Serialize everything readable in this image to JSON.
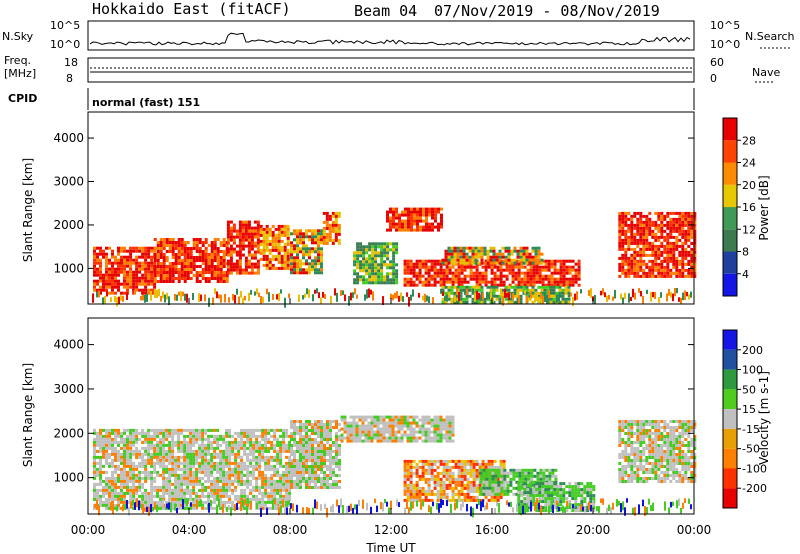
{
  "header": {
    "title": "Hokkaido East (fitACF)",
    "beam": "Beam 04",
    "date_range": "07/Nov/2019 - 08/Nov/2019"
  },
  "noise_panel": {
    "left_label": "N.Sky",
    "right_label": "N.Search",
    "left_ticks": [
      "10^5",
      "10^0"
    ],
    "right_ticks": [
      "10^5",
      "10^0"
    ]
  },
  "freq_panel": {
    "left_label_1": "Freq.",
    "left_label_2": "[MHz]",
    "left_ticks": [
      "18",
      "8"
    ],
    "right_label": "Nave",
    "right_ticks": [
      "60",
      "0"
    ]
  },
  "cpid_panel": {
    "label": "CPID",
    "value": "normal (fast) 151"
  },
  "colors": {
    "red": "#e60000",
    "orange": "#ff8000",
    "yellow": "#e8c000",
    "green": "#2e8b57",
    "lightgreen": "#44cc22",
    "gray": "#c0c0c0",
    "blue": "#1010e0",
    "navy": "#203080"
  },
  "chart_data": [
    {
      "type": "heatmap",
      "name": "power",
      "ylabel": "Slant Range [km]",
      "xlabel": "",
      "x_ticks": [
        "00:00",
        "04:00",
        "08:00",
        "12:00",
        "16:00",
        "20:00",
        "00:00"
      ],
      "xlim_hours": [
        0,
        24
      ],
      "ylim": [
        180,
        4600
      ],
      "y_ticks": [
        "1000",
        "2000",
        "3000",
        "4000"
      ],
      "colorbar": {
        "label": "Power [dB]",
        "ticks": [
          "4",
          "8",
          "12",
          "16",
          "20",
          "24",
          "28"
        ],
        "colors": [
          "#1515e6",
          "#2040a0",
          "#3c7a50",
          "#3f9a55",
          "#e6c800",
          "#ff8c00",
          "#ff4400",
          "#e60000"
        ]
      },
      "regions": [
        {
          "x0": 0.2,
          "x1": 2.6,
          "y0": 400,
          "y1": 1500,
          "level": "red"
        },
        {
          "x0": 2.6,
          "x1": 5.5,
          "y0": 700,
          "y1": 1700,
          "level": "red"
        },
        {
          "x0": 5.5,
          "x1": 6.8,
          "y0": 900,
          "y1": 2100,
          "level": "red"
        },
        {
          "x0": 6.8,
          "x1": 7.9,
          "y0": 1000,
          "y1": 2000,
          "level": "orange"
        },
        {
          "x0": 8.0,
          "x1": 9.2,
          "y0": 900,
          "y1": 1900,
          "level": "yellow"
        },
        {
          "x0": 9.3,
          "x1": 10.0,
          "y0": 1600,
          "y1": 2300,
          "level": "orange"
        },
        {
          "x0": 10.5,
          "x1": 12.2,
          "y0": 700,
          "y1": 1600,
          "level": "green"
        },
        {
          "x0": 11.8,
          "x1": 14.0,
          "y0": 1900,
          "y1": 2400,
          "level": "red"
        },
        {
          "x0": 12.5,
          "x1": 19.5,
          "y0": 600,
          "y1": 1200,
          "level": "red"
        },
        {
          "x0": 14.0,
          "x1": 18.0,
          "y0": 1100,
          "y1": 1500,
          "level": "yellow"
        },
        {
          "x0": 14.0,
          "x1": 19.0,
          "y0": 250,
          "y1": 600,
          "level": "green"
        },
        {
          "x0": 21.0,
          "x1": 24.0,
          "y0": 800,
          "y1": 2300,
          "level": "red"
        }
      ]
    },
    {
      "type": "heatmap",
      "name": "velocity",
      "ylabel": "Slant Range [km]",
      "xlabel": "Time UT",
      "x_ticks": [
        "00:00",
        "04:00",
        "08:00",
        "12:00",
        "16:00",
        "20:00",
        "00:00"
      ],
      "xlim_hours": [
        0,
        24
      ],
      "ylim": [
        180,
        4600
      ],
      "y_ticks": [
        "1000",
        "2000",
        "3000",
        "4000"
      ],
      "colorbar": {
        "label": "Velocity [m s-1]",
        "ticks": [
          "200",
          "100",
          "50",
          "15",
          "-15",
          "-50",
          "-100",
          "-200"
        ],
        "colors": [
          "#1515e6",
          "#2050a0",
          "#2e9a40",
          "#50cc20",
          "#c0c0c0",
          "#e8a000",
          "#ff8000",
          "#ff3000",
          "#e60000"
        ]
      },
      "regions": [
        {
          "x0": 0.2,
          "x1": 8.0,
          "y0": 300,
          "y1": 2100,
          "level": "gray"
        },
        {
          "x0": 8.0,
          "x1": 10.0,
          "y0": 800,
          "y1": 2300,
          "level": "gray"
        },
        {
          "x0": 10.0,
          "x1": 14.5,
          "y0": 1800,
          "y1": 2400,
          "level": "gray"
        },
        {
          "x0": 12.5,
          "x1": 16.5,
          "y0": 500,
          "y1": 1400,
          "level": "orange"
        },
        {
          "x0": 15.5,
          "x1": 18.5,
          "y0": 600,
          "y1": 1200,
          "level": "lightgreen"
        },
        {
          "x0": 17.0,
          "x1": 20.0,
          "y0": 250,
          "y1": 900,
          "level": "lightgreen"
        },
        {
          "x0": 21.0,
          "x1": 24.0,
          "y0": 900,
          "y1": 2300,
          "level": "gray"
        }
      ]
    }
  ]
}
